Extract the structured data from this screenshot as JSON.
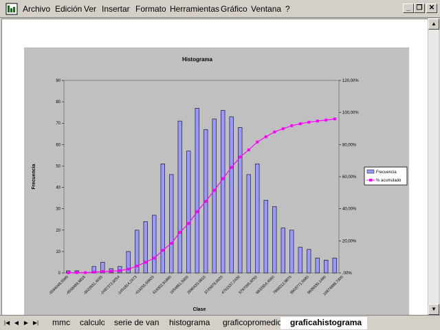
{
  "menu": {
    "items": [
      {
        "label": "Archivo"
      },
      {
        "label": "Edición"
      },
      {
        "label": "Ver"
      },
      {
        "label": "Insertar"
      },
      {
        "label": "Formato"
      },
      {
        "label": "Herramientas"
      },
      {
        "label": "Gráfico"
      },
      {
        "label": "Ventana"
      },
      {
        "label": "?"
      }
    ]
  },
  "window_buttons": {
    "minimize": "_",
    "restore": "❐",
    "close": "✕"
  },
  "tabs": [
    {
      "label": "mmc"
    },
    {
      "label": "calculo"
    },
    {
      "label": "serie de van"
    },
    {
      "label": "histograma"
    },
    {
      "label": "graficopromedio"
    },
    {
      "label": "graficahistograma",
      "active": true
    }
  ],
  "colors": {
    "bar": "#9999ff",
    "line": "#ff00ff",
    "plot_bg": "#c0c0c0"
  },
  "chart_data": {
    "type": "bar",
    "title": "Histograma",
    "xlabel": "Clase",
    "ylabel": "Frecuencia",
    "ylim": [
      0,
      90
    ],
    "y_ticks": [
      "0",
      "10",
      "20",
      "30",
      "40",
      "50",
      "60",
      "70",
      "80",
      "90"
    ],
    "y2lim": [
      0,
      120
    ],
    "y2_ticks": [
      ",00%",
      "20,00%",
      "40,00%",
      "60,00%",
      "80,00%",
      "100,00%",
      "120,00%"
    ],
    "x_tick_labels": [
      "-5594048,5599",
      "-4558489,9816",
      "-3522931,4035",
      "-2487372,8254",
      "-1451814,2473",
      "-416255,66920",
      "619302,91890",
      "1654861,5000",
      "2690420,0810",
      "3725978,6620",
      "4761537,2430",
      "5797095,8250",
      "6832654,4060",
      "7868212,9870",
      "8903771,5680",
      "9939330,1490",
      "10974888,7300"
    ],
    "legend": [
      "Frecuencia",
      "% acumulado"
    ],
    "legend_position": "right",
    "grid": false,
    "series": [
      {
        "name": "Frecuencia",
        "values": [
          1,
          1,
          0,
          3,
          5,
          2,
          3,
          10,
          20,
          24,
          27,
          51,
          46,
          71,
          57,
          77,
          67,
          72,
          76,
          73,
          68,
          46,
          51,
          34,
          31,
          21,
          20,
          12,
          11,
          7,
          6,
          7
        ]
      },
      {
        "name": "% acumulado",
        "values": [
          0.1,
          0.2,
          0.2,
          0.5,
          0.9,
          1.1,
          1.4,
          2.4,
          4.3,
          6.6,
          9.2,
          14.1,
          18.5,
          25.3,
          30.8,
          38.2,
          44.6,
          51.5,
          58.8,
          65.8,
          72.3,
          76.7,
          81.6,
          84.9,
          87.9,
          89.9,
          91.8,
          93.0,
          94.0,
          94.7,
          95.3,
          96.0
        ]
      }
    ]
  }
}
